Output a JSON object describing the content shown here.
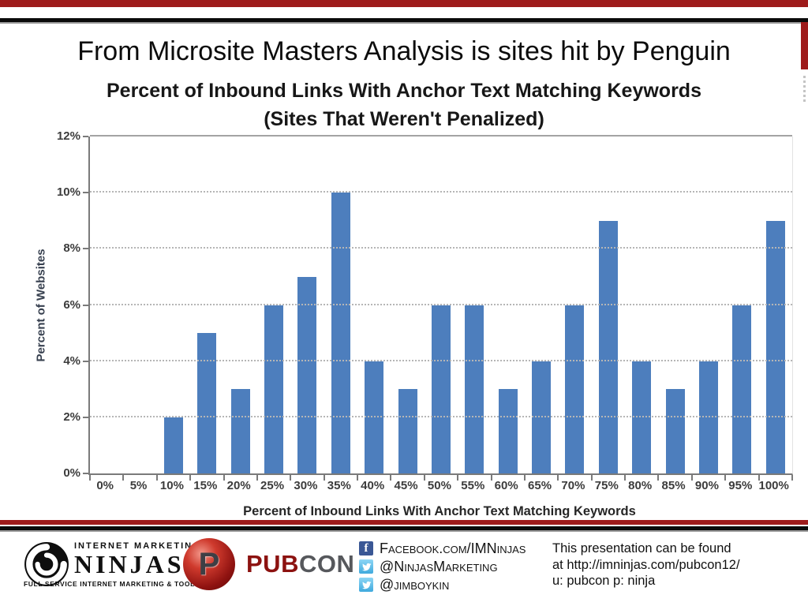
{
  "slide": {
    "title": "From Microsite Masters Analysis is sites hit by Penguin",
    "accent_color": "#9e1b1b"
  },
  "chart_data": {
    "type": "bar",
    "title_line1": "Percent of Inbound Links With Anchor Text Matching Keywords",
    "title_line2": "(Sites That Weren't Penalized)",
    "xlabel": "Percent of Inbound Links With Anchor Text Matching Keywords",
    "ylabel": "Percent of Websites",
    "categories": [
      "0%",
      "5%",
      "10%",
      "15%",
      "20%",
      "25%",
      "30%",
      "35%",
      "40%",
      "45%",
      "50%",
      "55%",
      "60%",
      "65%",
      "70%",
      "75%",
      "80%",
      "85%",
      "90%",
      "95%",
      "100%"
    ],
    "values": [
      0,
      0,
      2,
      5,
      3,
      6,
      7,
      10,
      4,
      3,
      6,
      6,
      3,
      4,
      6,
      9,
      4,
      3,
      4,
      6,
      9
    ],
    "yticks": [
      "12%",
      "10%",
      "8%",
      "6%",
      "4%",
      "2%",
      "0%"
    ],
    "ytick_values": [
      12,
      10,
      8,
      6,
      4,
      2,
      0
    ],
    "ylim": [
      0,
      12
    ],
    "bar_color": "#4d7ebd",
    "grid": true,
    "legend": false
  },
  "footer": {
    "imn_logo": {
      "top": "INTERNET MARKETING",
      "name": "NINJAS",
      "tagline": "FULL SERVICE INTERNET MARKETING & TOOLS"
    },
    "pubcon": {
      "p": "P",
      "pub": "PUB",
      "con": "CON"
    },
    "social": [
      {
        "icon": "facebook-icon",
        "label": "Facebook.com/IMNinjas"
      },
      {
        "icon": "twitter-icon",
        "label": "@NinjasMarketing"
      },
      {
        "icon": "twitter-icon",
        "label": "@jimboykin"
      }
    ],
    "note_lines": [
      "This presentation can be found",
      "at http://imninjas.com/pubcon12/",
      "u: pubcon p: ninja"
    ]
  },
  "colors": {
    "accent_red": "#9e1b1b",
    "bar_blue": "#4d7ebd",
    "facebook_blue": "#3a5795",
    "twitter_blue": "#3fa9dd",
    "pubcon_red": "#8c1210",
    "pubcon_gray": "#56585c"
  }
}
